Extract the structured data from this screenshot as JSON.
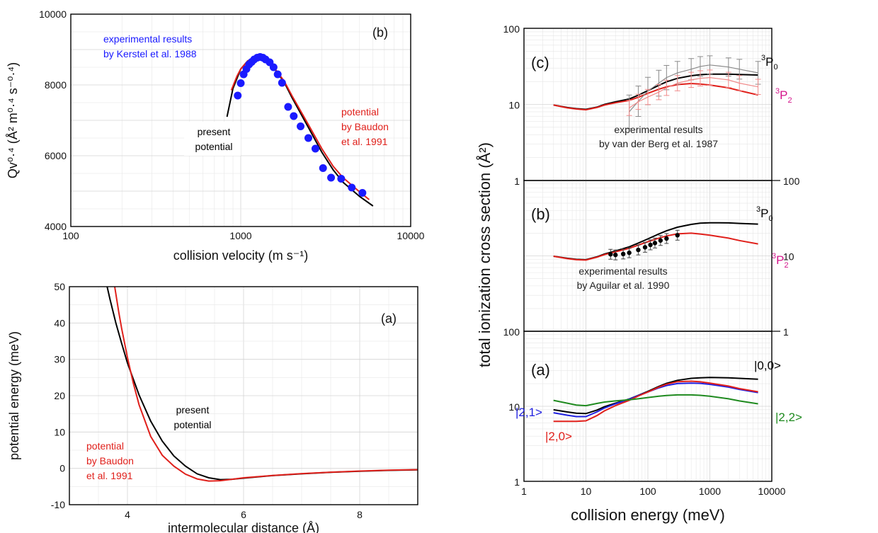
{
  "chart_data": [
    {
      "id": "top_left",
      "type": "line+scatter",
      "panel_label": "(b)",
      "xlabel": "collision velocity (m s⁻¹)",
      "ylabel": "Qv⁰·⁴ (Å² m⁰·⁴ s⁻⁰·⁴)",
      "xscale": "log",
      "xlim": [
        100,
        10000
      ],
      "ylim": [
        4000,
        10000
      ],
      "xticks": [
        100,
        1000,
        10000
      ],
      "yticks": [
        4000,
        6000,
        8000,
        10000
      ],
      "grid": true,
      "series": [
        {
          "name": "present potential",
          "label_lines": [
            "present",
            "potential"
          ],
          "color": "#000000",
          "kind": "line",
          "x": [
            830,
            900,
            1000,
            1100,
            1200,
            1300,
            1400,
            1600,
            1800,
            2000,
            2500,
            3000,
            3500,
            4000,
            5000,
            6000
          ],
          "y": [
            7100,
            7900,
            8450,
            8680,
            8760,
            8750,
            8680,
            8420,
            8080,
            7650,
            6800,
            6100,
            5600,
            5250,
            4850,
            4580
          ]
        },
        {
          "name": "potential by Baudon et al. 1991",
          "label_lines": [
            "potential",
            "by Baudon",
            "et al. 1991"
          ],
          "color": "#e0201b",
          "kind": "line",
          "x": [
            880,
            950,
            1000,
            1100,
            1200,
            1300,
            1400,
            1600,
            1800,
            2000,
            2500,
            3000,
            3500,
            4000,
            5000,
            5700
          ],
          "y": [
            7850,
            8250,
            8450,
            8680,
            8770,
            8760,
            8690,
            8440,
            8110,
            7700,
            6880,
            6200,
            5700,
            5380,
            4980,
            4760
          ]
        },
        {
          "name": "experimental results by Kerstel et al. 1988",
          "label_lines": [
            "experimental results",
            "by Kerstel et al. 1988"
          ],
          "color": "#1a1aff",
          "kind": "scatter",
          "x": [
            960,
            1000,
            1040,
            1080,
            1120,
            1160,
            1200,
            1250,
            1300,
            1350,
            1400,
            1480,
            1560,
            1650,
            1750,
            1900,
            2050,
            2250,
            2500,
            2750,
            3050,
            3400,
            3900,
            4500,
            5200
          ],
          "y": [
            7700,
            8050,
            8300,
            8450,
            8580,
            8650,
            8720,
            8770,
            8790,
            8770,
            8720,
            8640,
            8500,
            8300,
            8060,
            7380,
            7120,
            6830,
            6500,
            6200,
            5650,
            5380,
            5350,
            5100,
            4950
          ]
        }
      ]
    },
    {
      "id": "bottom_left",
      "type": "line",
      "panel_label": "(a)",
      "xlabel": "intermolecular distance (Å)",
      "ylabel": "potential energy (meV)",
      "xlim": [
        3,
        9
      ],
      "ylim": [
        -10,
        50
      ],
      "xticks": [
        4,
        6,
        8
      ],
      "yticks": [
        -10,
        0,
        10,
        20,
        30,
        40,
        50
      ],
      "grid": true,
      "series": [
        {
          "name": "present potential",
          "label_lines": [
            "present",
            "potential"
          ],
          "color": "#000000",
          "x": [
            3.65,
            3.7,
            3.8,
            3.9,
            4.0,
            4.2,
            4.4,
            4.6,
            4.8,
            5.0,
            5.2,
            5.4,
            5.6,
            5.8,
            6.0,
            6.5,
            7.0,
            7.5,
            8.0,
            8.5,
            9.0
          ],
          "y": [
            50,
            46.5,
            40,
            34.4,
            29.0,
            20.2,
            13.0,
            7.5,
            3.4,
            0.6,
            -1.5,
            -2.6,
            -3.1,
            -3.0,
            -2.7,
            -2.0,
            -1.5,
            -1.1,
            -0.8,
            -0.55,
            -0.4
          ]
        },
        {
          "name": "potential by Baudon et al. 1991",
          "label_lines": [
            "potential",
            "by Baudon",
            "et al. 1991"
          ],
          "color": "#e0201b",
          "x": [
            3.78,
            3.85,
            3.9,
            4.0,
            4.1,
            4.2,
            4.4,
            4.6,
            4.8,
            5.0,
            5.2,
            5.4,
            5.6,
            5.8,
            6.0,
            6.5,
            7.0,
            7.5,
            8.0,
            8.5,
            9.0
          ],
          "y": [
            50,
            43,
            38.5,
            30.5,
            23.5,
            17.5,
            8.8,
            3.6,
            0.6,
            -1.6,
            -2.9,
            -3.5,
            -3.4,
            -3.0,
            -2.6,
            -1.95,
            -1.45,
            -1.05,
            -0.75,
            -0.5,
            -0.35
          ]
        }
      ]
    },
    {
      "id": "right",
      "type": "line",
      "xlabel": "collision energy (meV)",
      "ylabel": "total ionization cross section (Å²)",
      "xscale": "log",
      "xlim": [
        1,
        10000
      ],
      "xticks": [
        1,
        10,
        100,
        1000,
        10000
      ],
      "panels": [
        {
          "panel_label": "(c)",
          "yscale": "log",
          "ylim": [
            1,
            100
          ],
          "yticks_left": [
            1,
            10,
            100
          ],
          "series": [
            {
              "name": "³P₀",
              "color": "#000000",
              "label": {
                "main": "P",
                "pre": "3",
                "sub": "0"
              },
              "x": [
                3,
                5,
                7,
                10,
                15,
                20,
                30,
                50,
                70,
                100,
                150,
                200,
                300,
                500,
                700,
                1000,
                2000,
                3000,
                6000
              ],
              "y": [
                9.8,
                9.1,
                8.8,
                8.6,
                9.2,
                10.0,
                10.8,
                11.8,
                13.2,
                15.2,
                17.8,
                19.8,
                22.0,
                23.8,
                24.6,
                25.0,
                25.0,
                24.7,
                24.3
              ]
            },
            {
              "name": "³P₂",
              "color": "#e0201b",
              "label": {
                "main": "P",
                "pre": "3",
                "sub": "2"
              },
              "x": [
                3,
                5,
                7,
                10,
                15,
                20,
                30,
                50,
                70,
                100,
                150,
                200,
                300,
                500,
                700,
                1000,
                2000,
                3000,
                6000
              ],
              "y": [
                9.8,
                9.0,
                8.7,
                8.5,
                9.1,
                9.8,
                10.5,
                11.3,
                12.4,
                14.0,
                15.8,
                17.0,
                18.2,
                18.8,
                18.5,
                18.0,
                16.5,
                15.2,
                13.3
              ]
            },
            {
              "name": "experimental results by van der Berg et al. 1987 (³P₀)",
              "label_lines": [
                "experimental results",
                "by van der Berg et al. 1987"
              ],
              "color": "#8a8a8a",
              "x": [
                50,
                70,
                100,
                150,
                200,
                300,
                500,
                700,
                1000,
                2000,
                3000,
                6000
              ],
              "y": [
                8.0,
                11.0,
                15.0,
                19.0,
                22.5,
                26.0,
                29.0,
                31.5,
                33.0,
                31.0,
                29.0,
                26.0
              ],
              "err": [
                0.22,
                0.2,
                0.18,
                0.17,
                0.16,
                0.15,
                0.14,
                0.13,
                0.12,
                0.12,
                0.13,
                0.15
              ]
            },
            {
              "name": "experimental results by van der Berg et al. 1987 (³P₂)",
              "color": "#f08a8a",
              "x": [
                50,
                70,
                100,
                150,
                200,
                300,
                500,
                700,
                1000,
                2000,
                3000,
                6000
              ],
              "y": [
                9.0,
                10.8,
                12.5,
                14.5,
                16.5,
                19.0,
                21.0,
                22.0,
                22.5,
                21.0,
                19.0,
                17.0
              ],
              "err": [
                0.1,
                0.1,
                0.1,
                0.1,
                0.1,
                0.1,
                0.1,
                0.1,
                0.1,
                0.1,
                0.1,
                0.1
              ]
            }
          ]
        },
        {
          "panel_label": "(b)",
          "yscale": "log",
          "ylim": [
            1,
            100
          ],
          "yticks_right": [
            1,
            10,
            100
          ],
          "series": [
            {
              "name": "³P₀",
              "color": "#000000",
              "label": {
                "main": "P",
                "pre": "3",
                "sub": "0"
              },
              "x": [
                3,
                5,
                7,
                10,
                15,
                20,
                30,
                50,
                70,
                100,
                150,
                200,
                300,
                500,
                700,
                1000,
                2000,
                3000,
                6000
              ],
              "y": [
                9.9,
                9.3,
                9.0,
                8.9,
                9.7,
                10.6,
                11.6,
                13.2,
                14.8,
                16.8,
                19.5,
                21.5,
                24.0,
                26.2,
                27.2,
                27.5,
                27.4,
                27.0,
                26.4
              ]
            },
            {
              "name": "³P₂",
              "color": "#e0201b",
              "label": {
                "main": "P",
                "pre": "3",
                "sub": "2"
              },
              "x": [
                3,
                5,
                7,
                10,
                15,
                20,
                30,
                50,
                70,
                100,
                150,
                200,
                300,
                500,
                700,
                1000,
                2000,
                3000,
                6000
              ],
              "y": [
                9.9,
                9.2,
                8.9,
                8.8,
                9.6,
                10.4,
                11.3,
                12.6,
                13.9,
                15.4,
                17.2,
                18.4,
                19.6,
                20.0,
                19.5,
                18.8,
                17.2,
                16.0,
                14.4
              ]
            },
            {
              "name": "experimental results by Aguilar et al. 1990",
              "label_lines": [
                "experimental results",
                "by Aguilar et al. 1990"
              ],
              "color": "#000000",
              "kind": "scatter",
              "x": [
                25,
                30,
                40,
                50,
                70,
                90,
                110,
                130,
                160,
                200,
                300
              ],
              "y": [
                10.5,
                10.3,
                10.6,
                11.0,
                12.0,
                13.0,
                14.0,
                14.8,
                16.0,
                17.0,
                18.8
              ]
            }
          ]
        },
        {
          "panel_label": "(a)",
          "yscale": "log",
          "ylim": [
            1,
            100
          ],
          "yticks_left": [
            1,
            10,
            100
          ],
          "series": [
            {
              "name": "|0,0>",
              "color": "#000000",
              "x": [
                3,
                5,
                7,
                10,
                15,
                20,
                30,
                50,
                70,
                100,
                150,
                200,
                300,
                500,
                700,
                1000,
                2000,
                3000,
                6000
              ],
              "y": [
                9.0,
                8.4,
                8.1,
                8.0,
                8.9,
                9.9,
                11.0,
                12.5,
                14.0,
                15.8,
                18.4,
                20.2,
                22.2,
                23.6,
                24.0,
                24.2,
                24.0,
                23.6,
                23.0
              ]
            },
            {
              "name": "|2,1>",
              "color": "#2020e0",
              "x": [
                3,
                5,
                7,
                10,
                15,
                20,
                30,
                50,
                70,
                100,
                150,
                200,
                300,
                500,
                700,
                1000,
                2000,
                3000,
                6000
              ],
              "y": [
                8.2,
                7.6,
                7.3,
                7.3,
                8.4,
                9.5,
                10.8,
                12.4,
                13.9,
                15.5,
                17.6,
                18.9,
                20.1,
                20.4,
                20.2,
                19.6,
                18.0,
                16.8,
                15.2
              ]
            },
            {
              "name": "|2,0>",
              "color": "#e0201b",
              "x": [
                3,
                5,
                7,
                10,
                15,
                20,
                30,
                50,
                70,
                100,
                150,
                200,
                300,
                500,
                700,
                1000,
                2000,
                3000,
                6000
              ],
              "y": [
                6.3,
                6.3,
                6.3,
                6.4,
                7.5,
                8.7,
                10.2,
                12.0,
                13.7,
                15.5,
                18.0,
                19.7,
                21.3,
                21.6,
                21.2,
                20.4,
                18.6,
                17.2,
                15.6
              ]
            },
            {
              "name": "|2,2>",
              "color": "#1f8a1f",
              "x": [
                3,
                5,
                7,
                10,
                15,
                20,
                30,
                50,
                70,
                100,
                150,
                200,
                300,
                500,
                700,
                1000,
                2000,
                3000,
                6000
              ],
              "y": [
                12.0,
                11.0,
                10.4,
                10.2,
                10.9,
                11.4,
                11.8,
                12.2,
                12.6,
                13.1,
                13.6,
                13.9,
                14.2,
                14.2,
                14.0,
                13.6,
                12.6,
                11.8,
                10.8
              ]
            }
          ]
        }
      ]
    }
  ]
}
